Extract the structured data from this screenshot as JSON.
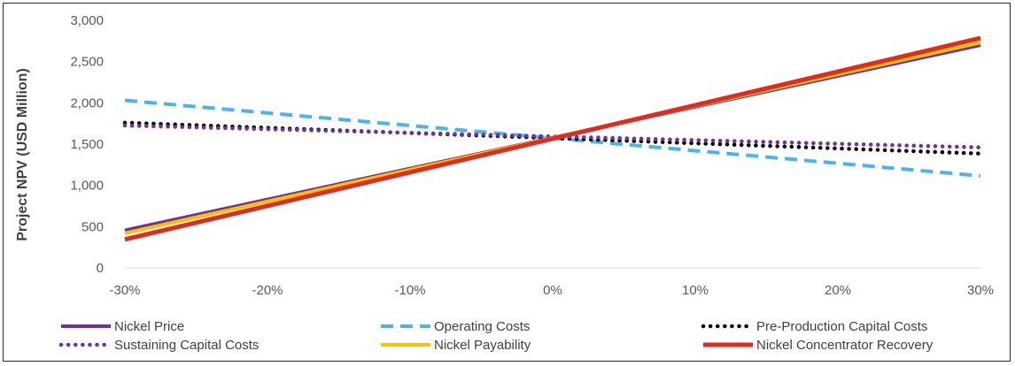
{
  "chart_data": {
    "type": "line",
    "title": "",
    "xlabel": "",
    "ylabel": "Project NPV (USD Million)",
    "x": [
      -30,
      30
    ],
    "x_tick_labels": [
      "-30%",
      "-20%",
      "-10%",
      "0%",
      "10%",
      "20%",
      "30%"
    ],
    "x_ticks": [
      -30,
      -20,
      -10,
      0,
      10,
      20,
      30
    ],
    "xlim": [
      -30,
      30
    ],
    "ylim": [
      0,
      3000
    ],
    "y_ticks": [
      0,
      500,
      1000,
      1500,
      2000,
      2500,
      3000
    ],
    "y_tick_labels": [
      "0",
      "500",
      "1,000",
      "1,500",
      "2,000",
      "2,500",
      "3,000"
    ],
    "grid": false,
    "legend_position": "bottom",
    "series": [
      {
        "name": "Nickel Price",
        "values": [
          455,
          2700
        ],
        "color": "#7030a0",
        "style": "solid"
      },
      {
        "name": "Operating Costs",
        "values": [
          2030,
          1115
        ],
        "color": "#4db3ee",
        "style": "dashed"
      },
      {
        "name": "Pre-Production Capital Costs",
        "values": [
          1760,
          1385
        ],
        "color": "#000000",
        "style": "dotted"
      },
      {
        "name": "Sustaining Capital Costs",
        "values": [
          1725,
          1460
        ],
        "color": "#7030a0",
        "style": "dotted"
      },
      {
        "name": "Nickel Payability",
        "values": [
          420,
          2730
        ],
        "color": "#ffc000",
        "style": "solid"
      },
      {
        "name": "Nickel Concentrator Recovery",
        "values": [
          345,
          2785
        ],
        "color": "#e02b20",
        "style": "solid"
      }
    ]
  }
}
